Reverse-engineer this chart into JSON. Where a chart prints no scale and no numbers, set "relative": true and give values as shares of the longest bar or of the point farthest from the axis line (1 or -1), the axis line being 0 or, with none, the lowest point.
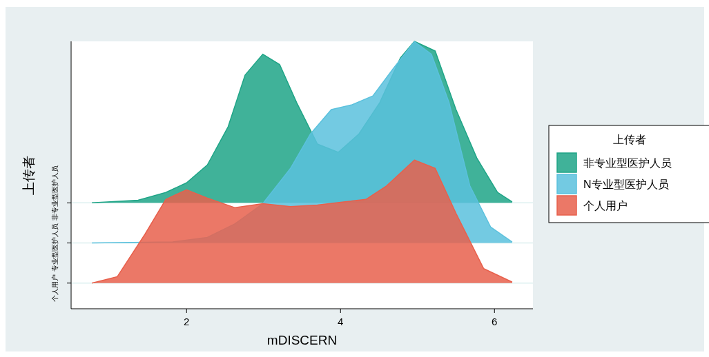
{
  "chart_data": {
    "type": "area",
    "relative": true,
    "xlabel": "mDISCERN",
    "ylabel": "上传者",
    "legend_title": "上传者",
    "xlim": [
      0.5,
      6.5
    ],
    "xticks": [
      2,
      4,
      6
    ],
    "ref_lines": [
      {
        "axis": "y",
        "value": 0.096,
        "label": "个人用户",
        "color": "#dcefef"
      },
      {
        "axis": "y",
        "value": 0.246,
        "label": "专业型医护人员",
        "color": "#dcefef"
      },
      {
        "axis": "y",
        "value": 0.396,
        "label": "非专业型医护人员",
        "color": "#dcefef"
      }
    ],
    "legend": "right",
    "series": [
      {
        "name": "非专业型医护人员",
        "color": "#1fa587",
        "x": [
          0.77,
          1.37,
          1.73,
          2.0,
          2.27,
          2.54,
          2.76,
          2.99,
          3.21,
          3.43,
          3.7,
          3.97,
          4.24,
          4.51,
          4.78,
          4.96,
          5.23,
          5.5,
          5.77,
          6.04,
          6.23
        ],
        "values": [
          0.396,
          0.406,
          0.435,
          0.471,
          0.538,
          0.681,
          0.874,
          0.952,
          0.913,
          0.771,
          0.616,
          0.585,
          0.654,
          0.771,
          0.939,
          1.0,
          0.964,
          0.745,
          0.564,
          0.435,
          0.4
        ]
      },
      {
        "name": "N专业型医护人员",
        "color": "#5bc1dd",
        "x": [
          0.77,
          1.82,
          2.27,
          2.63,
          2.99,
          3.35,
          3.61,
          3.88,
          4.15,
          4.42,
          4.69,
          4.96,
          5.18,
          5.41,
          5.68,
          5.95,
          6.23
        ],
        "values": [
          0.246,
          0.25,
          0.267,
          0.318,
          0.393,
          0.525,
          0.654,
          0.745,
          0.763,
          0.796,
          0.9,
          0.999,
          0.952,
          0.771,
          0.46,
          0.306,
          0.25
        ]
      },
      {
        "name": "个人用户",
        "color": "#e8604c",
        "x": [
          0.77,
          1.1,
          1.46,
          1.73,
          2.0,
          2.27,
          2.63,
          2.99,
          3.35,
          3.7,
          4.06,
          4.33,
          4.6,
          4.96,
          5.23,
          5.5,
          5.86,
          6.23
        ],
        "values": [
          0.096,
          0.12,
          0.279,
          0.409,
          0.445,
          0.414,
          0.378,
          0.393,
          0.382,
          0.388,
          0.4,
          0.409,
          0.46,
          0.556,
          0.525,
          0.357,
          0.15,
          0.1
        ]
      }
    ]
  }
}
